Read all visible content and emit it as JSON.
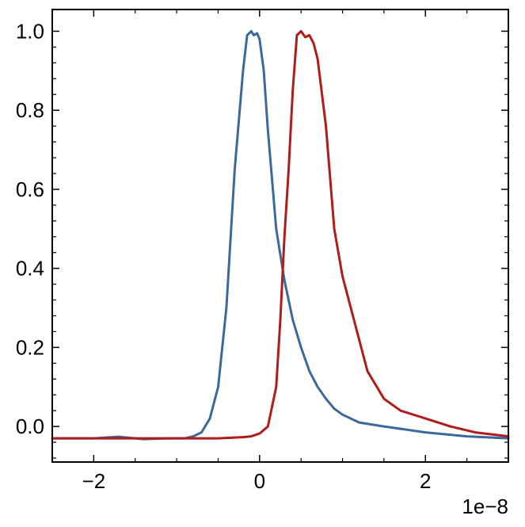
{
  "chart_data": {
    "type": "line",
    "title": "",
    "xlabel": "",
    "ylabel": "",
    "x_offset_label": "1e−8",
    "xlim": [
      -2.5,
      3.0
    ],
    "ylim": [
      -0.09,
      1.055
    ],
    "xticks": [
      -2,
      0,
      2
    ],
    "xtick_labels": [
      "−2",
      "0",
      "2"
    ],
    "yticks": [
      0.0,
      0.2,
      0.4,
      0.6,
      0.8,
      1.0
    ],
    "ytick_labels": [
      "0.0",
      "0.2",
      "0.4",
      "0.6",
      "0.8",
      "1.0"
    ],
    "grid": false,
    "legend": "none",
    "series": [
      {
        "color": "#3b6a9a",
        "x": [
          -2.5,
          -2.0,
          -1.7,
          -1.4,
          -1.1,
          -0.9,
          -0.8,
          -0.7,
          -0.6,
          -0.5,
          -0.4,
          -0.3,
          -0.2,
          -0.15,
          -0.1,
          -0.07,
          -0.03,
          0.0,
          0.05,
          0.1,
          0.2,
          0.3,
          0.4,
          0.5,
          0.6,
          0.7,
          0.8,
          0.9,
          1.0,
          1.2,
          1.5,
          2.0,
          2.5,
          3.0
        ],
        "y": [
          -0.03,
          -0.03,
          -0.026,
          -0.032,
          -0.03,
          -0.03,
          -0.025,
          -0.015,
          0.02,
          0.1,
          0.3,
          0.65,
          0.9,
          0.99,
          1.0,
          0.99,
          0.995,
          0.98,
          0.9,
          0.75,
          0.5,
          0.37,
          0.27,
          0.2,
          0.14,
          0.1,
          0.07,
          0.045,
          0.03,
          0.01,
          0.0,
          -0.015,
          -0.025,
          -0.03
        ]
      },
      {
        "color": "#b01c1c",
        "x": [
          -2.5,
          -1.0,
          -0.5,
          -0.2,
          -0.1,
          0.0,
          0.1,
          0.2,
          0.25,
          0.3,
          0.35,
          0.4,
          0.45,
          0.5,
          0.55,
          0.6,
          0.65,
          0.7,
          0.8,
          0.9,
          1.0,
          1.1,
          1.2,
          1.3,
          1.5,
          1.7,
          2.0,
          2.3,
          2.6,
          3.0
        ],
        "y": [
          -0.03,
          -0.03,
          -0.03,
          -0.027,
          -0.025,
          -0.018,
          0.0,
          0.1,
          0.27,
          0.48,
          0.65,
          0.85,
          0.99,
          1.0,
          0.985,
          0.99,
          0.97,
          0.93,
          0.76,
          0.5,
          0.38,
          0.3,
          0.22,
          0.14,
          0.07,
          0.04,
          0.02,
          0.0,
          -0.015,
          -0.025
        ]
      }
    ]
  }
}
